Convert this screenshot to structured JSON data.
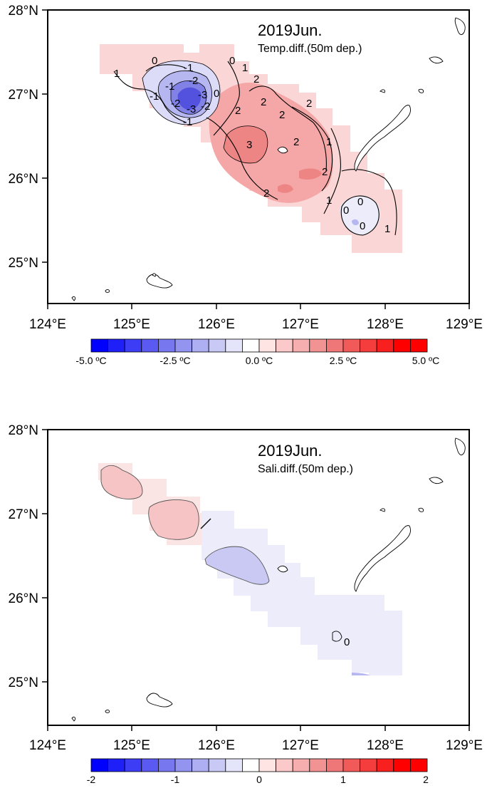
{
  "panels": [
    {
      "id": "temp",
      "title": "2019Jun.",
      "subtitle": "Temp.diff.(50m dep.)",
      "x_ticks": [
        "124°E",
        "125°E",
        "126°E",
        "127°E",
        "128°E",
        "129°E"
      ],
      "y_ticks": [
        "28°N",
        "27°N",
        "26°N",
        "25°N"
      ],
      "colorbar": {
        "colors": [
          "#0000ff",
          "#1f1ff8",
          "#3d3df5",
          "#5a5af2",
          "#7777f0",
          "#9393f0",
          "#aeaef3",
          "#c9c9f6",
          "#e4e4fb",
          "#ffffff",
          "#ffe4e4",
          "#fbc9c9",
          "#f7aeae",
          "#f29393",
          "#f07777",
          "#f25a5a",
          "#f53d3d",
          "#f81f1f",
          "#ff0000",
          "#ff0000"
        ],
        "labels": [
          "-5.0 ºC",
          "-2.5 ºC",
          "0.0 ºC",
          "2.5 ºC",
          "5.0 ºC"
        ]
      },
      "contour_labels": [
        "0",
        "1",
        "-1",
        "-1",
        "-2",
        "-3",
        "-2",
        "-3",
        "-2",
        "-1",
        "-1",
        "0",
        "0",
        "1",
        "2",
        "2",
        "2",
        "2",
        "2",
        "2",
        "3",
        "2",
        "2",
        "1",
        "1",
        "0",
        "0",
        "0",
        "1"
      ]
    },
    {
      "id": "sal",
      "title": "2019Jun.",
      "subtitle": "Sali.diff.(50m dep.)",
      "x_ticks": [
        "124°E",
        "125°E",
        "126°E",
        "127°E",
        "128°E",
        "129°E"
      ],
      "y_ticks": [
        "28°N",
        "27°N",
        "26°N",
        "25°N"
      ],
      "colorbar": {
        "colors": [
          "#0000ff",
          "#1f1ff8",
          "#3d3df5",
          "#5a5af2",
          "#7777f0",
          "#9393f0",
          "#aeaef3",
          "#c9c9f6",
          "#e4e4fb",
          "#ffffff",
          "#ffe4e4",
          "#fbc9c9",
          "#f7aeae",
          "#f29393",
          "#f07777",
          "#f25a5a",
          "#f53d3d",
          "#f81f1f",
          "#ff0000",
          "#ff0000"
        ],
        "labels": [
          "-2",
          "-1",
          "0",
          "1",
          "2"
        ]
      },
      "contour_labels": [
        "0"
      ]
    }
  ],
  "colors": {
    "frame": "#000000",
    "coast": "#000000",
    "pos_light": "#fbd2d2",
    "pos_mid": "#f5aaaa",
    "pos_strong": "#ee8080",
    "pos_max": "#e96a6a",
    "neg_light": "#dcdcf8",
    "neg_mid": "#b4b4f0",
    "neg_strong": "#7c7ce8",
    "neg_max": "#4e4ee0",
    "sal_pos": "#f6c4c4",
    "sal_neg_light": "#ececfb",
    "sal_neg": "#c9c9f3"
  }
}
